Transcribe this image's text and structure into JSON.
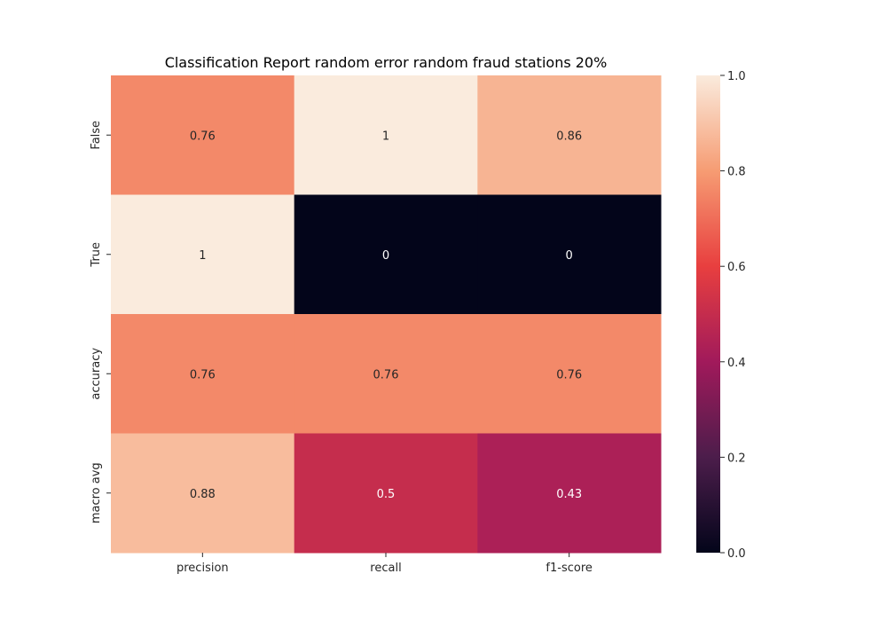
{
  "chart_data": {
    "type": "heatmap",
    "title": "Classification Report random error random fraud stations 20%",
    "xlabel": "",
    "ylabel": "",
    "columns": [
      "precision",
      "recall",
      "f1-score"
    ],
    "rows": [
      "False",
      "True",
      "accuracy",
      "macro avg"
    ],
    "values": [
      [
        0.76,
        1,
        0.86
      ],
      [
        1,
        0,
        0
      ],
      [
        0.76,
        0.76,
        0.76
      ],
      [
        0.88,
        0.5,
        0.43
      ]
    ],
    "annotations": [
      [
        "0.76",
        "1",
        "0.86"
      ],
      [
        "1",
        "0",
        "0"
      ],
      [
        "0.76",
        "0.76",
        "0.76"
      ],
      [
        "0.88",
        "0.5",
        "0.43"
      ]
    ],
    "colorbar": {
      "range": [
        0,
        1
      ],
      "ticks": [
        "0.0",
        "0.2",
        "0.4",
        "0.6",
        "0.8",
        "1.0"
      ],
      "colormap": "rocket",
      "stops": [
        "#03051a",
        "#4c1d4b",
        "#a11a5b",
        "#e83f3f",
        "#f69c73",
        "#faebdd"
      ]
    },
    "grid": false
  }
}
